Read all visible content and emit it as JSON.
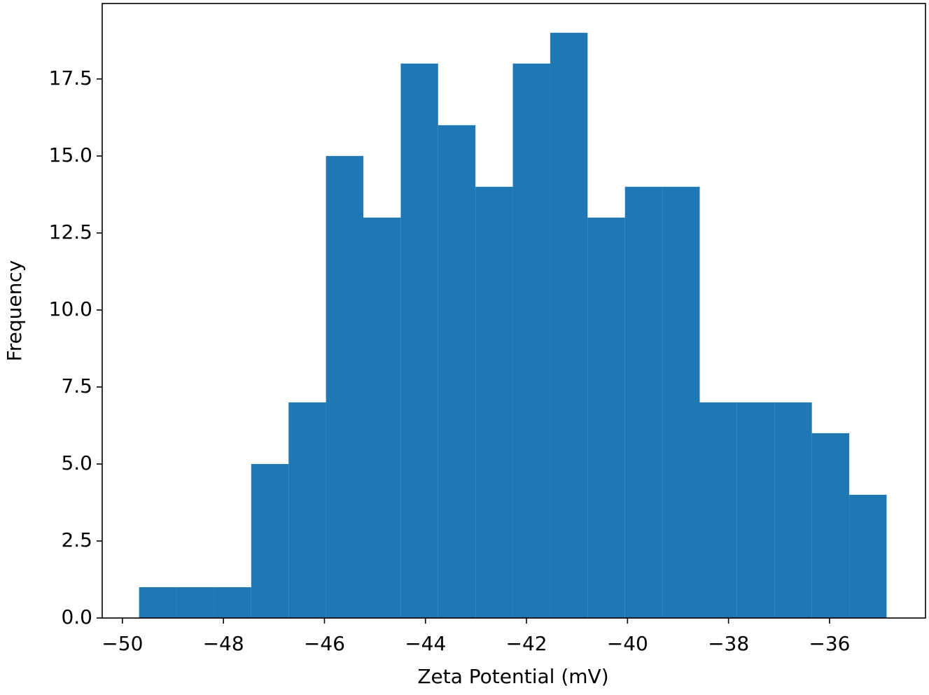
{
  "chart_data": {
    "type": "histogram",
    "x_label": "Zeta Potential (mV)",
    "y_label": "Frequency",
    "bins": [
      -49.67,
      -48.93,
      -48.19,
      -47.45,
      -46.71,
      -45.97,
      -45.23,
      -44.49,
      -43.75,
      -43.01,
      -42.27,
      -41.53,
      -40.79,
      -40.05,
      -39.31,
      -38.57,
      -37.83,
      -37.09,
      -36.35,
      -35.61,
      -34.87
    ],
    "values": [
      1,
      1,
      1,
      5,
      7,
      15,
      13,
      18,
      16,
      14,
      18,
      19,
      13,
      14,
      14,
      7,
      7,
      7,
      6,
      4
    ],
    "color": "#1f77b4",
    "xlim": [
      -50.4,
      -34.1
    ],
    "ylim": [
      0,
      19.95
    ],
    "xticks": [
      {
        "value": -50,
        "label": "−50"
      },
      {
        "value": -48,
        "label": "−48"
      },
      {
        "value": -46,
        "label": "−46"
      },
      {
        "value": -44,
        "label": "−44"
      },
      {
        "value": -42,
        "label": "−42"
      },
      {
        "value": -40,
        "label": "−40"
      },
      {
        "value": -38,
        "label": "−38"
      },
      {
        "value": -36,
        "label": "−36"
      }
    ],
    "yticks": [
      {
        "value": 0,
        "label": "0.0"
      },
      2.5,
      {
        "value": 5,
        "label": "5.0"
      },
      7.5,
      {
        "value": 10,
        "label": "10.0"
      },
      12.5,
      {
        "value": 15,
        "label": "15.0"
      },
      17.5
    ],
    "grid": false
  }
}
